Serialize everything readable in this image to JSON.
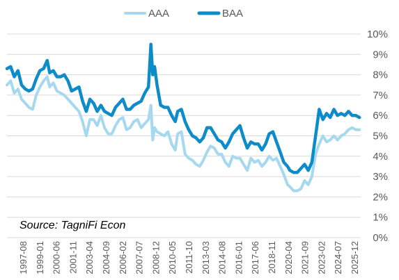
{
  "chart_data": {
    "type": "line",
    "source": "Source: TagniFi Econ",
    "ylim": [
      0,
      10
    ],
    "xlim": [
      1997.0,
      2026.0
    ],
    "y_tick_values": [
      0,
      1,
      2,
      3,
      4,
      5,
      6,
      7,
      8,
      9,
      10
    ],
    "y_tick_labels": [
      "0%",
      "1%",
      "2%",
      "3%",
      "4%",
      "5%",
      "6%",
      "7%",
      "8%",
      "9%",
      "10%"
    ],
    "y_axis_side": "right",
    "x_tick_labels": [
      "1997-08",
      "1999-01",
      "2000-06",
      "2001-11",
      "2003-04",
      "2004-09",
      "2006-02",
      "2007-07",
      "2008-12",
      "2010-05",
      "2011-10",
      "2013-03",
      "2014-08",
      "2016-01",
      "2017-06",
      "2018-11",
      "2020-04",
      "2021-09",
      "2023-02",
      "2024-07",
      "2025-12"
    ],
    "grid": "horizontal",
    "legend_position": "top",
    "colors": {
      "AAA": "#a6d8ef",
      "BAA": "#0e8bc9",
      "grid": "#d9d9d9",
      "text": "#595959"
    },
    "series": [
      {
        "name": "AAA",
        "x": [
          1997.0,
          1997.3,
          1997.6,
          1997.9,
          1998.2,
          1998.5,
          1998.8,
          1999.1,
          1999.4,
          1999.7,
          2000.0,
          2000.3,
          2000.5,
          2000.8,
          2001.1,
          2001.4,
          2001.7,
          2002.0,
          2002.3,
          2002.6,
          2002.9,
          2003.2,
          2003.5,
          2003.8,
          2004.1,
          2004.4,
          2004.7,
          2005.0,
          2005.3,
          2005.6,
          2005.9,
          2006.2,
          2006.5,
          2006.8,
          2007.1,
          2007.4,
          2007.7,
          2008.0,
          2008.3,
          2008.6,
          2008.8,
          2008.95,
          2009.1,
          2009.3,
          2009.6,
          2009.9,
          2010.2,
          2010.5,
          2010.8,
          2011.0,
          2011.3,
          2011.6,
          2011.9,
          2012.2,
          2012.5,
          2012.8,
          2013.1,
          2013.4,
          2013.7,
          2014.0,
          2014.3,
          2014.6,
          2014.9,
          2015.2,
          2015.5,
          2015.8,
          2016.1,
          2016.4,
          2016.7,
          2017.0,
          2017.3,
          2017.6,
          2017.9,
          2018.2,
          2018.5,
          2018.8,
          2019.1,
          2019.4,
          2019.7,
          2020.0,
          2020.2,
          2020.5,
          2020.8,
          2021.1,
          2021.4,
          2021.7,
          2022.0,
          2022.3,
          2022.6,
          2022.9,
          2023.2,
          2023.5,
          2023.8,
          2024.1,
          2024.4,
          2024.7,
          2025.0,
          2025.3,
          2025.6,
          2025.9
        ],
        "values": [
          7.5,
          7.7,
          7.1,
          7.3,
          6.8,
          6.6,
          6.4,
          6.3,
          7.0,
          7.4,
          7.7,
          7.9,
          7.4,
          7.6,
          7.2,
          7.1,
          7.0,
          6.8,
          6.6,
          6.4,
          6.2,
          5.7,
          5.0,
          5.8,
          5.8,
          5.5,
          6.0,
          5.4,
          5.1,
          5.1,
          5.5,
          5.8,
          5.9,
          5.3,
          5.4,
          5.7,
          5.8,
          5.4,
          5.6,
          5.8,
          6.5,
          4.8,
          5.4,
          5.2,
          5.1,
          5.0,
          5.2,
          4.6,
          4.3,
          5.1,
          5.2,
          4.1,
          3.9,
          3.8,
          3.6,
          3.5,
          3.8,
          4.2,
          4.5,
          4.4,
          4.1,
          4.1,
          3.7,
          3.5,
          4.0,
          3.9,
          3.9,
          3.6,
          3.3,
          3.9,
          3.7,
          3.8,
          3.5,
          3.7,
          4.0,
          3.8,
          3.9,
          3.5,
          3.1,
          2.6,
          2.5,
          2.3,
          2.3,
          2.4,
          2.8,
          2.6,
          3.0,
          4.1,
          4.6,
          5.0,
          4.7,
          4.8,
          5.0,
          4.8,
          5.0,
          5.1,
          5.3,
          5.4,
          5.3,
          5.3
        ]
      },
      {
        "name": "BAA",
        "x": [
          1997.0,
          1997.3,
          1997.6,
          1997.9,
          1998.2,
          1998.5,
          1998.8,
          1999.1,
          1999.4,
          1999.7,
          2000.0,
          2000.3,
          2000.5,
          2000.8,
          2001.1,
          2001.4,
          2001.7,
          2002.0,
          2002.3,
          2002.6,
          2002.9,
          2003.2,
          2003.5,
          2003.8,
          2004.1,
          2004.4,
          2004.7,
          2005.0,
          2005.3,
          2005.6,
          2005.9,
          2006.2,
          2006.5,
          2006.8,
          2007.1,
          2007.4,
          2007.7,
          2008.0,
          2008.3,
          2008.6,
          2008.8,
          2008.95,
          2009.1,
          2009.3,
          2009.6,
          2009.9,
          2010.2,
          2010.5,
          2010.8,
          2011.0,
          2011.3,
          2011.6,
          2011.9,
          2012.2,
          2012.5,
          2012.8,
          2013.1,
          2013.4,
          2013.7,
          2014.0,
          2014.3,
          2014.6,
          2014.9,
          2015.2,
          2015.5,
          2015.8,
          2016.1,
          2016.4,
          2016.7,
          2017.0,
          2017.3,
          2017.6,
          2017.9,
          2018.2,
          2018.5,
          2018.8,
          2019.1,
          2019.4,
          2019.7,
          2020.0,
          2020.2,
          2020.5,
          2020.8,
          2021.1,
          2021.4,
          2021.7,
          2022.0,
          2022.3,
          2022.6,
          2022.9,
          2023.2,
          2023.5,
          2023.8,
          2024.1,
          2024.4,
          2024.7,
          2025.0,
          2025.3,
          2025.6,
          2025.9
        ],
        "values": [
          8.3,
          8.4,
          7.9,
          8.2,
          7.5,
          7.3,
          7.2,
          7.3,
          7.8,
          8.2,
          8.3,
          8.7,
          8.1,
          8.2,
          7.9,
          7.9,
          8.0,
          7.7,
          7.2,
          7.3,
          7.4,
          6.7,
          6.2,
          6.8,
          6.6,
          6.2,
          6.5,
          6.2,
          6.1,
          6.0,
          6.4,
          6.6,
          6.8,
          6.3,
          6.3,
          6.5,
          6.6,
          6.7,
          7.1,
          7.4,
          9.5,
          8.0,
          8.4,
          7.5,
          6.5,
          6.4,
          6.4,
          6.0,
          5.7,
          6.2,
          6.3,
          5.7,
          5.3,
          5.0,
          4.9,
          4.7,
          4.9,
          5.4,
          5.4,
          5.1,
          4.8,
          4.7,
          4.4,
          4.7,
          5.1,
          5.3,
          5.5,
          4.9,
          4.4,
          4.7,
          4.6,
          4.6,
          4.3,
          4.6,
          5.1,
          5.2,
          4.7,
          4.2,
          3.7,
          3.5,
          3.3,
          3.2,
          3.2,
          3.4,
          3.6,
          3.3,
          3.7,
          5.0,
          6.3,
          5.8,
          6.1,
          5.9,
          6.3,
          6.0,
          6.1,
          6.0,
          6.2,
          6.0,
          6.0,
          5.9
        ]
      }
    ]
  }
}
